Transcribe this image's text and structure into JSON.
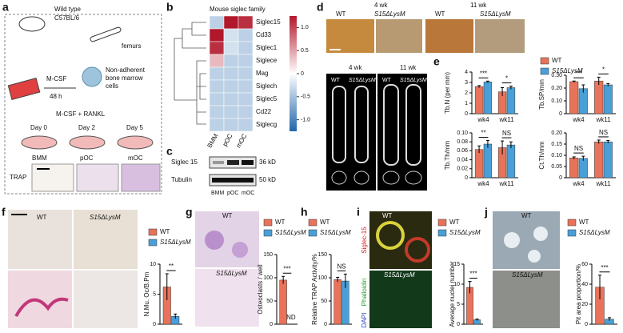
{
  "panel_a": {
    "label": "a",
    "mouse": [
      "Wild type",
      "C57BL/6"
    ],
    "femurs": "femurs",
    "cells": [
      "Non-adherent",
      "bone marrow",
      "cells"
    ],
    "mcsf": "M-CSF",
    "time": "48 h",
    "treatment": "M-CSF + RANKL",
    "days": [
      "Day 0",
      "Day 2",
      "Day 5"
    ],
    "stages": [
      "BMM",
      "pOC",
      "mOC"
    ],
    "stain": "TRAP"
  },
  "panel_b": {
    "label": "b",
    "title": "Mouse siglec family",
    "rows": [
      "Siglec15",
      "Cd33",
      "Siglec1",
      "Siglece",
      "Mag",
      "Siglech",
      "Siglec5",
      "Cd22",
      "Siglecg"
    ],
    "columns": [
      "BMM",
      "pOC",
      "mOC"
    ],
    "values": [
      [
        -0.3,
        1.0,
        0.9
      ],
      [
        1.0,
        -0.2,
        -0.3
      ],
      [
        0.9,
        -0.2,
        -0.3
      ],
      [
        0.3,
        -0.3,
        -0.3
      ],
      [
        -0.3,
        -0.3,
        -0.3
      ],
      [
        -0.3,
        -0.3,
        -0.3
      ],
      [
        -0.3,
        -0.3,
        -0.3
      ],
      [
        -0.3,
        -0.3,
        -0.3
      ],
      [
        -0.3,
        -0.3,
        -0.3
      ]
    ],
    "clim": [
      -1.25,
      1.25
    ],
    "cticks": [
      {
        "value": 1,
        "label": "1.0"
      },
      0.5,
      0,
      -0.5,
      {
        "value": -1,
        "label": "-1.0"
      }
    ]
  },
  "panel_c": {
    "label": "c",
    "bands": [
      "Siglec 15",
      "Tubulin"
    ],
    "sizes": [
      "36 kD",
      "50 kD"
    ],
    "columns": [
      "BMM",
      "pOC",
      "mOC"
    ]
  },
  "panel_d": {
    "label": "d",
    "ages": [
      "4 wk",
      "11 wk"
    ],
    "genotypes": [
      "WT",
      "S15ΔLysM"
    ]
  },
  "panel_e": {
    "label": "e",
    "legend": [
      {
        "name": "WT",
        "color": "#e8735a"
      },
      {
        "name": "S15ΔLysM",
        "color": "#4a9fd8"
      }
    ],
    "charts": [
      {
        "ylabel": "Tb.N (per mm)",
        "categories": [
          "wk4",
          "wk11"
        ],
        "ylim": [
          0,
          4
        ],
        "yticks": [
          0,
          1,
          2,
          3,
          4
        ],
        "series": [
          {
            "values": [
              2.6,
              2.1
            ],
            "errors": [
              0.1,
              0.4
            ]
          },
          {
            "values": [
              3.05,
              2.5
            ],
            "errors": [
              0.08,
              0.15
            ]
          }
        ],
        "annotations": [
          "***",
          "*"
        ]
      },
      {
        "ylabel": "Tb.SP/mm",
        "categories": [
          "wk4",
          "wk11"
        ],
        "ylim": [
          0,
          0.3
        ],
        "yticks": [
          0,
          {
            "value": 0.1,
            "label": "0.10"
          },
          {
            "value": 0.2,
            "label": "0.20"
          },
          {
            "value": 0.3,
            "label": "0.30"
          }
        ],
        "series": [
          {
            "values": [
              0.25,
              0.255
            ],
            "errors": [
              0.005,
              0.03
            ]
          },
          {
            "values": [
              0.195,
              0.225
            ],
            "errors": [
              0.03,
              0.01
            ]
          }
        ],
        "annotations": [
          "***",
          "*"
        ]
      },
      {
        "ylabel": "Tb.Th/mm",
        "categories": [
          "wk4",
          "wk11"
        ],
        "ylim": [
          0,
          0.1
        ],
        "yticks": [
          0,
          0.02,
          0.04,
          0.06,
          0.08,
          {
            "value": 0.1,
            "label": "0.10"
          }
        ],
        "series": [
          {
            "values": [
              0.063,
              0.067
            ],
            "errors": [
              0.008,
              0.015
            ]
          },
          {
            "values": [
              0.075,
              0.073
            ],
            "errors": [
              0.008,
              0.007
            ]
          }
        ],
        "annotations": [
          "**",
          "NS"
        ]
      },
      {
        "ylabel": "Ct.Th/mm",
        "categories": [
          "wk4",
          "wk11"
        ],
        "ylim": [
          0,
          0.2
        ],
        "yticks": [
          0,
          0.05,
          {
            "value": 0.1,
            "label": "0.10"
          },
          0.15,
          {
            "value": 0.2,
            "label": "0.20"
          }
        ],
        "series": [
          {
            "values": [
              0.088,
              0.16
            ],
            "errors": [
              0.005,
              0.008
            ]
          },
          {
            "values": [
              0.086,
              0.16
            ],
            "errors": [
              0.01,
              0.006
            ]
          }
        ],
        "annotations": [
          "NS",
          "NS"
        ]
      }
    ]
  },
  "panel_f": {
    "label": "f",
    "genotypes": [
      "WT",
      "S15ΔLysM"
    ],
    "legend": [
      {
        "name": "WT",
        "color": "#e8735a"
      },
      {
        "name": "S15ΔLysM",
        "color": "#4a9fd8"
      }
    ],
    "chart": {
      "ylabel": "N.Mu. Oc/B.Pm",
      "ylim": [
        0,
        10
      ],
      "yticks": [
        0,
        5,
        10
      ],
      "series": [
        {
          "values": [
            6.2
          ],
          "errors": [
            2.2
          ]
        },
        {
          "values": [
            1.3
          ],
          "errors": [
            0.4
          ]
        }
      ],
      "annotations": [
        "**"
      ]
    }
  },
  "panel_g": {
    "label": "g",
    "genotypes": [
      "WT",
      "S15ΔLysM"
    ],
    "legend": [
      {
        "name": "WT",
        "color": "#e8735a"
      },
      {
        "name": "S15ΔLysM",
        "color": "#4a9fd8"
      }
    ],
    "chart": {
      "ylabel": "Osteoclasts / well",
      "ylim": [
        0,
        150
      ],
      "yticks": [
        0,
        50,
        100,
        150
      ],
      "series": [
        {
          "values": [
            95
          ],
          "errors": [
            8
          ]
        },
        {
          "values": [
            0
          ],
          "errors": [
            0
          ]
        }
      ],
      "annotations": [
        "***"
      ],
      "note": "ND"
    }
  },
  "panel_h": {
    "label": "h",
    "legend": [
      {
        "name": "WT",
        "color": "#e8735a"
      },
      {
        "name": "S15ΔLysM",
        "color": "#4a9fd8"
      }
    ],
    "chart": {
      "ylabel": "Relative TRAP Activity/%",
      "ylim": [
        0,
        150
      ],
      "yticks": [
        0,
        50,
        100,
        150
      ],
      "series": [
        {
          "values": [
            96
          ],
          "errors": [
            5
          ]
        },
        {
          "values": [
            93
          ],
          "errors": [
            15
          ]
        }
      ],
      "annotations": [
        "NS"
      ]
    }
  },
  "panel_i": {
    "label": "i",
    "genotypes": [
      "WT",
      "S15ΔLysM"
    ],
    "stains": [
      "Siglec-15",
      "Phalloidin",
      "DAPI"
    ],
    "legend": [
      {
        "name": "WT",
        "color": "#e8735a"
      },
      {
        "name": "S15ΔLysM",
        "color": "#4a9fd8"
      }
    ],
    "chart": {
      "ylabel": "Average nuclei number",
      "ylim": [
        0,
        15
      ],
      "yticks": [
        0,
        5,
        10,
        15
      ],
      "series": [
        {
          "values": [
            9.2
          ],
          "errors": [
            1.5
          ]
        },
        {
          "values": [
            1.1
          ],
          "errors": [
            0.2
          ]
        }
      ],
      "annotations": [
        "***"
      ]
    }
  },
  "panel_j": {
    "label": "j",
    "genotypes": [
      "WT",
      "S15ΔLysM"
    ],
    "legend": [
      {
        "name": "WT",
        "color": "#e8735a"
      },
      {
        "name": "S15ΔLysM",
        "color": "#4a9fd8"
      }
    ],
    "chart": {
      "ylabel": "Pit area proportion/%",
      "ylim": [
        0,
        60
      ],
      "yticks": [
        0,
        20,
        40,
        60
      ],
      "series": [
        {
          "values": [
            37
          ],
          "errors": [
            12
          ]
        },
        {
          "values": [
            5
          ],
          "errors": [
            1.5
          ]
        }
      ],
      "annotations": [
        "***"
      ]
    }
  }
}
